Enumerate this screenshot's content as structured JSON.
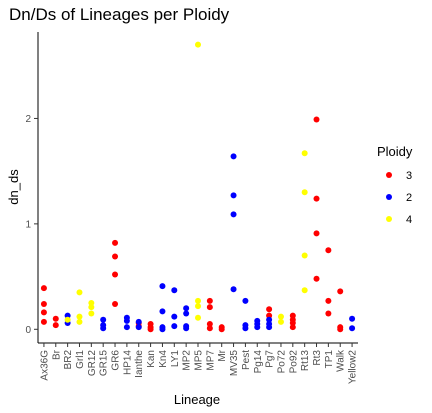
{
  "chart_data": {
    "type": "scatter",
    "title": "Dn/Ds of Lineages per Ploidy",
    "xlabel": "Lineage",
    "ylabel": "dn_ds",
    "ylim": [
      -0.13,
      2.82
    ],
    "y_ticks": [
      0,
      1,
      2
    ],
    "grid": false,
    "categories": [
      "Ax36G",
      "Br",
      "BR2",
      "Grl1",
      "GR12",
      "GR15",
      "GR6",
      "HP14",
      "Ianthe",
      "Kan",
      "Kn4",
      "LY1",
      "MP2",
      "MP5",
      "MP7",
      "Mr",
      "MV35",
      "Pest",
      "Pg14",
      "Pg7",
      "Po72",
      "Po92",
      "Rt13",
      "Rt3",
      "TP1",
      "Walk",
      "Yellow2"
    ],
    "legend": {
      "title": "Ploidy",
      "placement": "right",
      "entries": [
        {
          "label": "3",
          "color": "#ff0000"
        },
        {
          "label": "2",
          "color": "#0000ff"
        },
        {
          "label": "4",
          "color": "#ffff00"
        }
      ]
    },
    "series": [
      {
        "name": "3",
        "color": "#ff0000",
        "points": [
          {
            "x": "Ax36G",
            "y": 0.39
          },
          {
            "x": "Ax36G",
            "y": 0.24
          },
          {
            "x": "Ax36G",
            "y": 0.16
          },
          {
            "x": "Ax36G",
            "y": 0.07
          },
          {
            "x": "Br",
            "y": 0.1
          },
          {
            "x": "Br",
            "y": 0.04
          },
          {
            "x": "GR6",
            "y": 0.82
          },
          {
            "x": "GR6",
            "y": 0.69
          },
          {
            "x": "GR6",
            "y": 0.52
          },
          {
            "x": "GR6",
            "y": 0.24
          },
          {
            "x": "Ianthe",
            "y": 0.06
          },
          {
            "x": "Ianthe",
            "y": 0.03
          },
          {
            "x": "Kan",
            "y": 0.05
          },
          {
            "x": "Kan",
            "y": 0.02
          },
          {
            "x": "Kan",
            "y": 0.0
          },
          {
            "x": "MP7",
            "y": 0.27
          },
          {
            "x": "MP7",
            "y": 0.21
          },
          {
            "x": "MP7",
            "y": 0.05
          },
          {
            "x": "MP7",
            "y": 0.01
          },
          {
            "x": "Mr",
            "y": 0.02
          },
          {
            "x": "Mr",
            "y": 0.0
          },
          {
            "x": "Pg7",
            "y": 0.19
          },
          {
            "x": "Pg7",
            "y": 0.13
          },
          {
            "x": "Po92",
            "y": 0.13
          },
          {
            "x": "Po92",
            "y": 0.09
          },
          {
            "x": "Po92",
            "y": 0.06
          },
          {
            "x": "Po92",
            "y": 0.02
          },
          {
            "x": "Rt3",
            "y": 1.99
          },
          {
            "x": "Rt3",
            "y": 1.24
          },
          {
            "x": "Rt3",
            "y": 0.91
          },
          {
            "x": "Rt3",
            "y": 0.48
          },
          {
            "x": "TP1",
            "y": 0.75
          },
          {
            "x": "TP1",
            "y": 0.27
          },
          {
            "x": "TP1",
            "y": 0.15
          },
          {
            "x": "Walk",
            "y": 0.36
          },
          {
            "x": "Walk",
            "y": 0.02
          },
          {
            "x": "Walk",
            "y": 0.0
          }
        ]
      },
      {
        "name": "2",
        "color": "#0000ff",
        "points": [
          {
            "x": "BR2",
            "y": 0.13
          },
          {
            "x": "BR2",
            "y": 0.06
          },
          {
            "x": "GR15",
            "y": 0.09
          },
          {
            "x": "GR15",
            "y": 0.04
          },
          {
            "x": "GR15",
            "y": 0.01
          },
          {
            "x": "HP14",
            "y": 0.11
          },
          {
            "x": "HP14",
            "y": 0.08
          },
          {
            "x": "HP14",
            "y": 0.02
          },
          {
            "x": "Ianthe",
            "y": 0.07
          },
          {
            "x": "Ianthe",
            "y": 0.02
          },
          {
            "x": "Kn4",
            "y": 0.41
          },
          {
            "x": "Kn4",
            "y": 0.17
          },
          {
            "x": "Kn4",
            "y": 0.02
          },
          {
            "x": "Kn4",
            "y": 0.0
          },
          {
            "x": "LY1",
            "y": 0.37
          },
          {
            "x": "LY1",
            "y": 0.12
          },
          {
            "x": "LY1",
            "y": 0.03
          },
          {
            "x": "MP2",
            "y": 0.2
          },
          {
            "x": "MP2",
            "y": 0.15
          },
          {
            "x": "MP2",
            "y": 0.03
          },
          {
            "x": "MP2",
            "y": 0.01
          },
          {
            "x": "MV35",
            "y": 1.64
          },
          {
            "x": "MV35",
            "y": 1.27
          },
          {
            "x": "MV35",
            "y": 1.09
          },
          {
            "x": "MV35",
            "y": 0.38
          },
          {
            "x": "Pest",
            "y": 0.27
          },
          {
            "x": "Pest",
            "y": 0.04
          },
          {
            "x": "Pest",
            "y": 0.01
          },
          {
            "x": "Pg14",
            "y": 0.08
          },
          {
            "x": "Pg14",
            "y": 0.05
          },
          {
            "x": "Pg14",
            "y": 0.02
          },
          {
            "x": "Pg7",
            "y": 0.09
          },
          {
            "x": "Pg7",
            "y": 0.05
          },
          {
            "x": "Pg7",
            "y": 0.02
          },
          {
            "x": "Yellow2",
            "y": 0.1
          },
          {
            "x": "Yellow2",
            "y": 0.01
          }
        ]
      },
      {
        "name": "4",
        "color": "#ffff00",
        "points": [
          {
            "x": "BR2",
            "y": 0.09
          },
          {
            "x": "Grl1",
            "y": 0.35
          },
          {
            "x": "Grl1",
            "y": 0.12
          },
          {
            "x": "Grl1",
            "y": 0.07
          },
          {
            "x": "GR12",
            "y": 0.25
          },
          {
            "x": "GR12",
            "y": 0.21
          },
          {
            "x": "GR12",
            "y": 0.15
          },
          {
            "x": "MP5",
            "y": 2.7
          },
          {
            "x": "MP5",
            "y": 0.27
          },
          {
            "x": "MP5",
            "y": 0.22
          },
          {
            "x": "MP5",
            "y": 0.11
          },
          {
            "x": "Po72",
            "y": 0.12
          },
          {
            "x": "Po72",
            "y": 0.07
          },
          {
            "x": "Rt13",
            "y": 1.67
          },
          {
            "x": "Rt13",
            "y": 1.3
          },
          {
            "x": "Rt13",
            "y": 0.7
          },
          {
            "x": "Rt13",
            "y": 0.37
          }
        ]
      }
    ]
  }
}
